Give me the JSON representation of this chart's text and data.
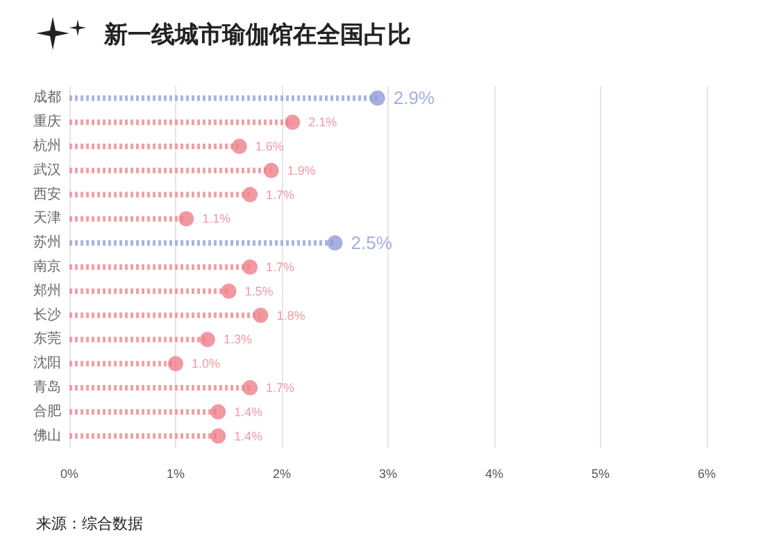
{
  "chart_data": {
    "type": "lollipop",
    "orientation": "horizontal",
    "title": "新一线城市瑜伽馆在全国占比",
    "categories": [
      "成都",
      "重庆",
      "杭州",
      "武汉",
      "西安",
      "天津",
      "苏州",
      "南京",
      "郑州",
      "长沙",
      "东莞",
      "沈阳",
      "青岛",
      "合肥",
      "佛山"
    ],
    "values": [
      2.9,
      2.1,
      1.6,
      1.9,
      1.7,
      1.1,
      2.5,
      1.7,
      1.5,
      1.8,
      1.3,
      1.0,
      1.7,
      1.4,
      1.4
    ],
    "colors": [
      "#8e9bd8",
      "#ee7f8a",
      "#ee7f8a",
      "#ee7f8a",
      "#ee7f8a",
      "#ee7f8a",
      "#8e9bd8",
      "#ee7f8a",
      "#ee7f8a",
      "#ee7f8a",
      "#ee7f8a",
      "#ee7f8a",
      "#ee7f8a",
      "#ee7f8a",
      "#ee7f8a"
    ],
    "value_labels": [
      "2.9%",
      "2.1%",
      "1.6%",
      "1.9%",
      "1.7%",
      "1.1%",
      "2.5%",
      "1.7%",
      "1.5%",
      "1.8%",
      "1.3%",
      "1.0%",
      "1.7%",
      "1.4%",
      "1.4%"
    ],
    "xlim": [
      0,
      6
    ],
    "xticks": [
      {
        "value": 0,
        "label": "0%"
      },
      {
        "value": 1,
        "label": "1%"
      },
      {
        "value": 2,
        "label": "2%"
      },
      {
        "value": 3,
        "label": "3%"
      },
      {
        "value": 4,
        "label": "4%"
      },
      {
        "value": 5,
        "label": "5%"
      },
      {
        "value": 6,
        "label": "6%"
      }
    ],
    "grid": "x",
    "marker": "circle",
    "line_style": "dotted",
    "annotations": [
      "来源：综合数据"
    ]
  }
}
